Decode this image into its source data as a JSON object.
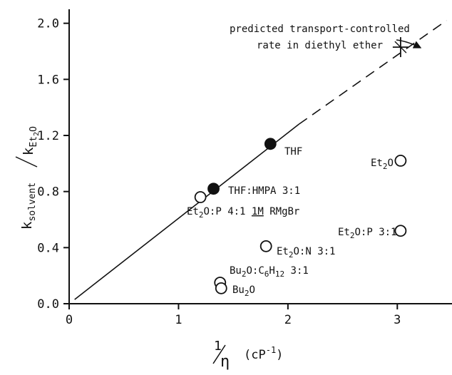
{
  "chart_data": {
    "type": "scatter",
    "xlim": [
      0,
      3.5
    ],
    "ylim": [
      0,
      2.1
    ],
    "x_ticks": [
      {
        "value": 0,
        "label": "0"
      },
      {
        "value": 1,
        "label": "1"
      },
      {
        "value": 2,
        "label": "2"
      },
      {
        "value": 3,
        "label": "3"
      }
    ],
    "y_ticks": [
      {
        "value": 0.0,
        "label": "0.0"
      },
      {
        "value": 0.4,
        "label": "0.4"
      },
      {
        "value": 0.8,
        "label": "0.8"
      },
      {
        "value": 1.2,
        "label": "1.2"
      },
      {
        "value": 1.6,
        "label": "1.6"
      },
      {
        "value": 2.0,
        "label": "2.0"
      }
    ],
    "xlabel": {
      "numerator": "1",
      "denominator": "η",
      "unit_prefix": "(cP",
      "unit_exp": "-1",
      "unit_suffix": ")"
    },
    "ylabel": {
      "num_base": "k",
      "num_sub": "solvent",
      "den_base": "k",
      "den_sub_base": "Et",
      "den_sub_sub": "2",
      "den_sub_tail": "O"
    },
    "fit_line": {
      "solid": [
        [
          0.05,
          0.03
        ],
        [
          2.1,
          1.28
        ]
      ],
      "dashed": [
        [
          2.1,
          1.28
        ],
        [
          3.45,
          2.02
        ]
      ]
    },
    "points": [
      {
        "x": 1.32,
        "y": 0.82,
        "filled": true,
        "label": "THF:HMPA 3:1"
      },
      {
        "x": 1.84,
        "y": 1.14,
        "filled": true,
        "label": "THF"
      },
      {
        "x": 1.2,
        "y": 0.76,
        "filled": false,
        "label": "Et2O:P 4:1 1M RMgBr"
      },
      {
        "x": 3.03,
        "y": 1.02,
        "filled": false,
        "label": "Et2O"
      },
      {
        "x": 3.03,
        "y": 0.52,
        "filled": false,
        "label": "Et2O:P 3:1"
      },
      {
        "x": 1.8,
        "y": 0.41,
        "filled": false,
        "label": "Et2O:N 3:1"
      },
      {
        "x": 1.38,
        "y": 0.15,
        "filled": false,
        "label": "Bu2O:C6H12 3:1"
      },
      {
        "x": 1.39,
        "y": 0.11,
        "filled": false,
        "label": "Bu2O"
      }
    ],
    "predicted_point": {
      "x": 3.03,
      "y": 1.83
    },
    "annotation": {
      "line1": "predicted transport-controlled",
      "line2": "rate in diethyl ether"
    },
    "point_labels": {
      "thf": "THF",
      "thf_hmpa": "THF:HMPA 3:1",
      "et2o_p41": {
        "a": "Et",
        "b": "2",
        "c": "O:P 4:1 ",
        "d": "1M",
        "e": " RMgBr"
      },
      "et2o": {
        "a": "Et",
        "b": "2",
        "c": "O"
      },
      "et2o_p31": {
        "a": "Et",
        "b": "2",
        "c": "O:P 3:1"
      },
      "et2o_n31": {
        "a": "Et",
        "b": "2",
        "c": "O:N 3:1"
      },
      "bu2o_c6h12": {
        "a": "Bu",
        "b": "2",
        "c": "O:C",
        "d": "6",
        "e": "H",
        "f": "12",
        "g": " 3:1"
      },
      "bu2o": {
        "a": "Bu",
        "b": "2",
        "c": "O"
      }
    }
  }
}
